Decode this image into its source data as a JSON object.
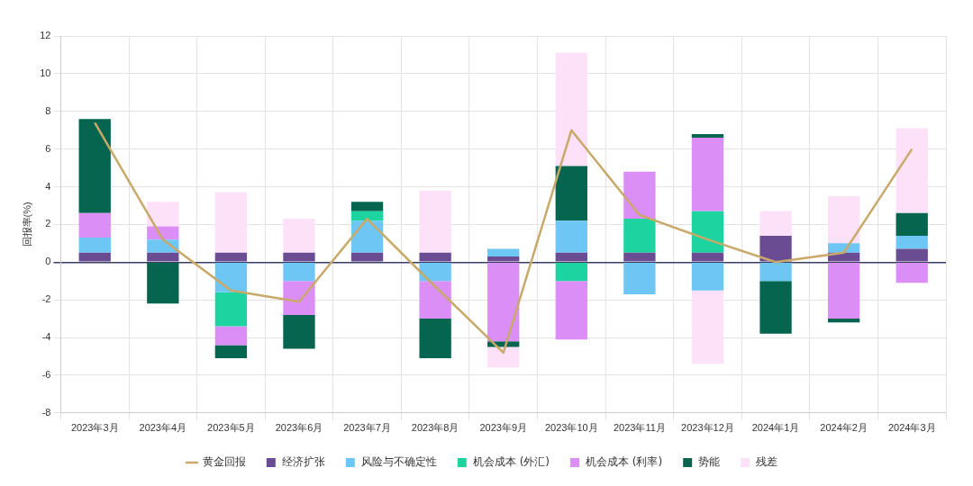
{
  "chart_data": {
    "type": "bar",
    "stacked": true,
    "ylabel": "回报率(%)",
    "categories": [
      "2023年3月",
      "2023年4月",
      "2023年5月",
      "2023年6月",
      "2023年7月",
      "2023年8月",
      "2023年9月",
      "2023年10月",
      "2023年11月",
      "2023年12月",
      "2024年1月",
      "2024年2月",
      "2024年3月"
    ],
    "series": [
      {
        "name": "经济扩张",
        "color": "#6a4c93",
        "values": [
          0.5,
          0.5,
          0.5,
          0.5,
          0.5,
          0.5,
          0.3,
          0.5,
          0.5,
          0.5,
          1.4,
          0.5,
          0.7
        ]
      },
      {
        "name": "风险与不确定性",
        "color": "#6ec6f5",
        "values": [
          0.8,
          0.7,
          -1.6,
          -1.0,
          1.7,
          -1.0,
          0.4,
          1.7,
          -1.7,
          -1.5,
          -1.0,
          0.5,
          0.7
        ]
      },
      {
        "name": "机会成本 (外汇)",
        "color": "#1dd3a0",
        "values": [
          null,
          null,
          -1.8,
          null,
          0.5,
          null,
          null,
          -1.0,
          1.8,
          2.2,
          null,
          null,
          null
        ]
      },
      {
        "name": "机会成本 (利率)",
        "color": "#db8ef5",
        "values": [
          1.3,
          0.7,
          -1.0,
          -1.8,
          null,
          -2.0,
          -4.2,
          -3.1,
          2.5,
          3.9,
          null,
          -3.0,
          -1.1
        ]
      },
      {
        "name": "势能",
        "color": "#06654f",
        "values": [
          5.0,
          -2.2,
          -0.7,
          -1.8,
          0.5,
          -2.1,
          -0.3,
          2.9,
          null,
          0.2,
          -2.8,
          -0.2,
          1.2
        ]
      },
      {
        "name": "残差",
        "color": "#fce1f9",
        "values": [
          null,
          1.3,
          3.2,
          1.8,
          null,
          3.3,
          -1.1,
          6.0,
          null,
          -3.9,
          1.3,
          2.5,
          4.5
        ]
      },
      {
        "name": "黄金回报",
        "type": "line",
        "color": "#c8a96a",
        "values": [
          7.4,
          1.2,
          -1.5,
          -2.1,
          2.3,
          -1.3,
          -4.8,
          7.0,
          2.5,
          1.2,
          0,
          0.5,
          6.0
        ]
      }
    ],
    "ylim": [
      -8,
      12
    ],
    "yticks": [
      -8,
      -6,
      -4,
      -2,
      0,
      2,
      4,
      6,
      8,
      10,
      12
    ],
    "grid": true,
    "legend": "bottom"
  }
}
